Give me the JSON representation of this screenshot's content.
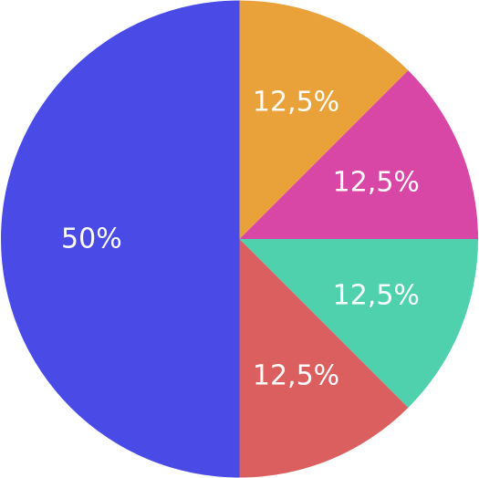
{
  "chart_data": {
    "type": "pie",
    "start_angle_deg": 0,
    "direction": "clockwise",
    "slices": [
      {
        "label": "12,5%",
        "value": 12.5,
        "color": "#E9A23A"
      },
      {
        "label": "12,5%",
        "value": 12.5,
        "color": "#D846A6"
      },
      {
        "label": "12,5%",
        "value": 12.5,
        "color": "#4FD1AE"
      },
      {
        "label": "12,5%",
        "value": 12.5,
        "color": "#DB5F5E"
      },
      {
        "label": "50%",
        "value": 50,
        "color": "#4A4AE6"
      }
    ]
  }
}
